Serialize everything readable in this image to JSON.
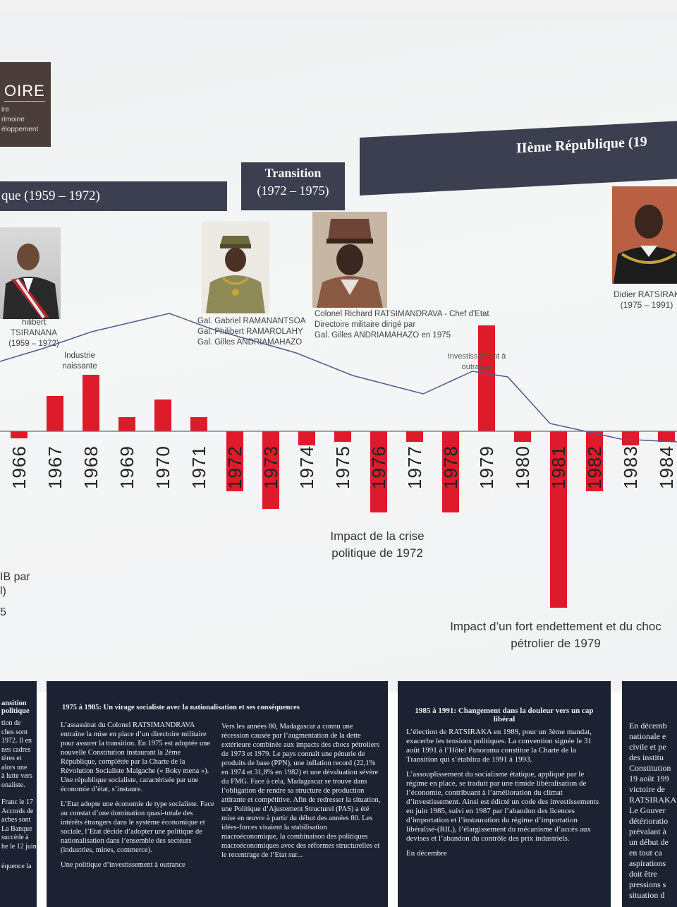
{
  "logo": {
    "title": "OIRE",
    "lines": [
      "ire",
      "rimoine",
      "éloppement"
    ]
  },
  "eras": [
    {
      "label": "que (1959 – 1972)"
    },
    {
      "label": "Transition",
      "label2": "(1972 – 1975)"
    },
    {
      "label": "IIème République (19"
    }
  ],
  "portraits": [
    {
      "name": "hilibert TSIRANANA",
      "years": "(1959 – 1972)"
    },
    {
      "lines": [
        "Gal. Gabriel RAMANANTSOA",
        "Gal. Philibert RAMAROLAHY",
        "Gal. Gilles ANDRIAMAHAZO"
      ]
    },
    {
      "lines": [
        "Colonel Richard RATSIMANDRAVA - Chef d'Etat",
        "Directoire militaire dirigé par",
        "Gal. Gilles ANDRIAMAHAZO en 1975"
      ]
    },
    {
      "name": "Didier RATSIRAK",
      "years": "(1975 – 1991)"
    }
  ],
  "chart_data": {
    "type": "bar",
    "categories": [
      "1966",
      "1967",
      "1968",
      "1969",
      "1970",
      "1971",
      "1972",
      "1973",
      "1974",
      "1975",
      "1976",
      "1977",
      "1978",
      "1979",
      "1980",
      "1981",
      "1982",
      "1983",
      "1984"
    ],
    "values": [
      -1,
      5,
      8,
      2,
      4.5,
      2,
      -8.5,
      -11,
      -2,
      -1.5,
      -11.5,
      -1.5,
      -11.5,
      15,
      -1.5,
      -25,
      -8.5,
      -2,
      -1.5
    ],
    "ylabel": "IB par",
    "annotations": [
      "Industrie naissante",
      "Investissement à outrance",
      "Impact de la crise politique de 1972",
      "Impact d’un fort endettement et du choc pétrolier de 1979"
    ],
    "bar_color": "#dd1b2b",
    "line_color": "#4e5b8e"
  },
  "axis_fragments": [
    "l)",
    "5"
  ],
  "panels": [
    {
      "heading": "ansition\npolitique",
      "left": [
        "tion de",
        "ches sont",
        "1972. Il en",
        "nes cadres",
        "tères et",
        "alors une",
        "à lutte vers",
        "onaliste.",
        "Franc le 17",
        "Accords de",
        "aches sont",
        "La Banque",
        "succède à",
        "he le 12 juin",
        "équence la"
      ]
    },
    {
      "heading": "1975 à 1985: Un virage socialiste avec la  nationalisation et ses conséquences",
      "col1": [
        "L’assassinat du Colonel RATSIMANDRAVA entraîne la mise en place d’un directoire militaire pour assurer la transition. En 1975 est adoptée une nouvelle Constitution instaurant la 2ème République, complétée par la Charte de la Révolution Socialiste Malgache (« Boky mena »). Une république socialiste, caractérisée par une économie d’état, s’instaure.",
        "L’Etat adopte une économie de type socialiste. Face au constat d’une domination quasi-totale des intérêts étrangers dans le système économique et sociale, l’Etat décide d’adopter une politique de nationalisation dans l’ensemble des secteurs (industries, mines, commerce).",
        "Une politique d’investissement à outrance"
      ],
      "col2": [
        "Vers les années 80, Madagascar a connu une récession causée par l’augmentation de la dette extérieure combinée aux impacts des chocs pétroliers de 1973 et 1979. Le pays connaît une pénurie de produits de base (PPN), une inflation record (22,1% en 1974 et 31,8% en 1982) et une dévaluation sévère du FMG. Face à cela, Madagascar se trouve dans l’obligation de rendre sa structure de production attirante et compétitive. Afin de redresser la situation, une Politique d’Ajustement Structurel (PAS) a été mise en œuvre à partir du début des années 80. Les idées-forces visaient la stabilisation macroéconomique, la combinaison des politiques macroéconomiques avec des réformes structurelles et le recentrage de l’Etat sur..."
      ]
    },
    {
      "heading": "1985 à 1991: Changement dans la douleur vers un cap libéral",
      "paras": [
        "L’élection de RATSIRAKA en 1989, pour un 3ème mandat, exacerbe les tensions politiques. La convention signée le 31 août 1991 à l’Hôtel Panorama constitue la Charte de la Transition qui s’établira de 1991 à 1993.",
        "L’assouplissement du socialisme étatique, appliqué par le régime en place, se traduit par une timide libéralisation de l’économie, contribuant à l’amélioration du climat d’investissement. Ainsi est édicté un code des investissements en juin 1985, suivi en 1987 par l’abandon des licences d’importation et l’instauration du régime d’importation libéralisé-(RIL), l’élargissement du mécanisme d’accès aux devises et l’abandon du contrôle des prix industriels.",
        "En décembre"
      ]
    },
    {
      "lines": [
        "En décemb",
        "nationale e",
        "civile et pe",
        "des institu",
        "Constitution",
        "19 août 199",
        "victoire de",
        "RATSIRAKA",
        "Le Gouver",
        "détérioratio",
        "prévalant à",
        "un début de",
        "en tout ca",
        "aspirations",
        "doit être",
        "pressions s",
        "situation d"
      ]
    }
  ]
}
